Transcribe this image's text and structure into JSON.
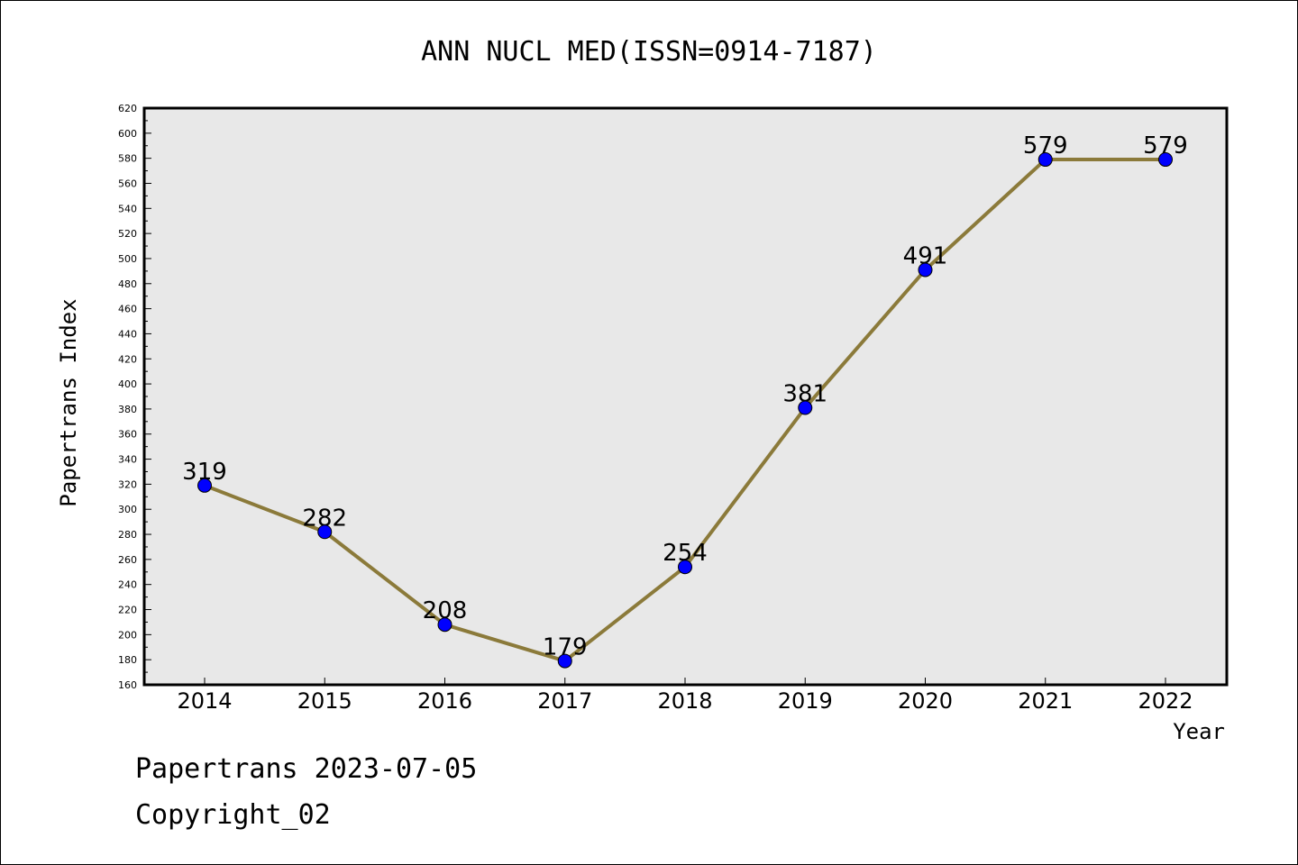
{
  "chart_data": {
    "type": "line",
    "title": "ANN NUCL MED(ISSN=0914-7187)",
    "xlabel": "Year",
    "ylabel": "Papertrans Index",
    "categories": [
      "2014",
      "2015",
      "2016",
      "2017",
      "2018",
      "2019",
      "2020",
      "2021",
      "2022"
    ],
    "series": [
      {
        "values": [
          319,
          282,
          208,
          179,
          254,
          381,
          491,
          579,
          579
        ]
      }
    ],
    "data_labels": [
      "319",
      "282",
      "208",
      "179",
      "254",
      "381",
      "491",
      "579",
      "579"
    ],
    "ylim": [
      160,
      620
    ],
    "yticks": [
      160,
      180,
      200,
      220,
      240,
      260,
      280,
      300,
      320,
      340,
      360,
      380,
      400,
      420,
      440,
      460,
      480,
      500,
      520,
      540,
      560,
      580,
      600,
      620
    ],
    "grid": false,
    "line_color": "#8B7A3A",
    "marker_color": "#0000FF",
    "plot_background": "#E8E8E8"
  },
  "footer": {
    "line1": "Papertrans 2023-07-05",
    "line2": "Copyright_02"
  }
}
